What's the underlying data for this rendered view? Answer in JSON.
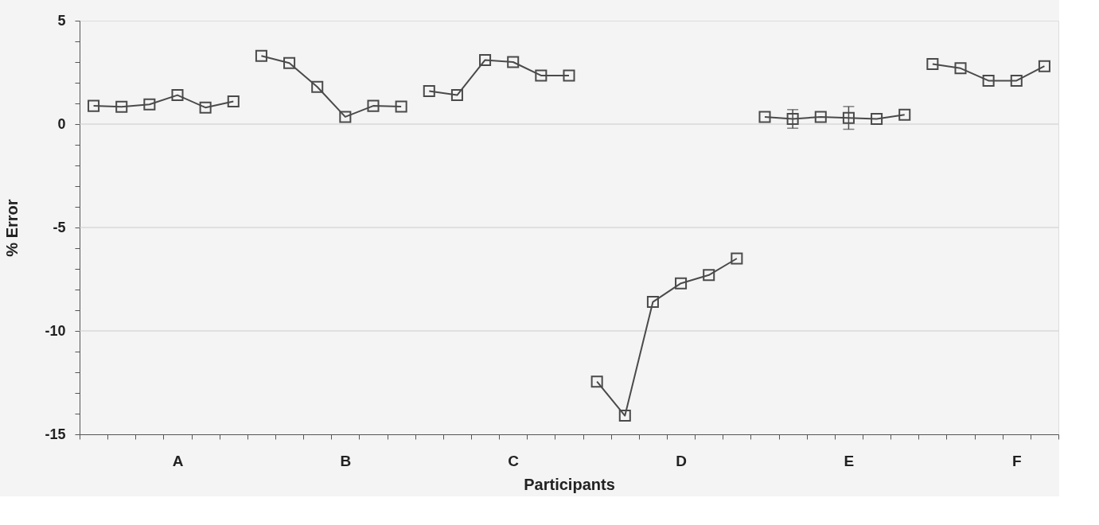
{
  "chart_data": {
    "type": "line",
    "xlabel": "Participants",
    "ylabel": "% Error",
    "categories": [
      null,
      null,
      null,
      "A",
      null,
      null,
      null,
      null,
      null,
      "B",
      null,
      null,
      null,
      null,
      null,
      "C",
      null,
      null,
      null,
      null,
      null,
      "D",
      null,
      null,
      null,
      null,
      null,
      "E",
      null,
      null,
      null,
      null,
      null,
      "F",
      null
    ],
    "series": [
      {
        "color": "#4a4a4a",
        "values": [
          0.88,
          0.84,
          0.95,
          1.4,
          0.8,
          1.1,
          null,
          null,
          null,
          null,
          null,
          null,
          null,
          null,
          null,
          null,
          null,
          null,
          null,
          null,
          null,
          null,
          null,
          null,
          null,
          null,
          null,
          null,
          null,
          null,
          null,
          null,
          null,
          null,
          null
        ]
      },
      {
        "color": "#4a4a4a",
        "values": [
          null,
          null,
          null,
          null,
          null,
          null,
          3.3,
          2.95,
          1.8,
          0.35,
          0.88,
          0.85,
          null,
          null,
          null,
          null,
          null,
          null,
          null,
          null,
          null,
          null,
          null,
          null,
          null,
          null,
          null,
          null,
          null,
          null,
          null,
          null,
          null,
          null,
          null
        ]
      },
      {
        "color": "#4a4a4a",
        "values": [
          null,
          null,
          null,
          null,
          null,
          null,
          null,
          null,
          null,
          null,
          null,
          null,
          1.6,
          1.4,
          3.1,
          3.0,
          2.35,
          2.35,
          null,
          null,
          null,
          null,
          null,
          null,
          null,
          null,
          null,
          null,
          null,
          null,
          null,
          null,
          null,
          null,
          null
        ]
      },
      {
        "color": "#4a4a4a",
        "values": [
          null,
          null,
          null,
          null,
          null,
          null,
          null,
          null,
          null,
          null,
          null,
          null,
          null,
          null,
          null,
          null,
          null,
          null,
          -12.45,
          -14.1,
          -8.6,
          -7.7,
          -7.3,
          -6.5,
          null,
          null,
          null,
          null,
          null,
          null,
          null,
          null,
          null,
          null,
          null
        ]
      },
      {
        "color": "#4a4a4a",
        "values": [
          null,
          null,
          null,
          null,
          null,
          null,
          null,
          null,
          null,
          null,
          null,
          null,
          null,
          null,
          null,
          null,
          null,
          null,
          null,
          null,
          null,
          null,
          null,
          null,
          0.35,
          0.25,
          0.35,
          0.3,
          0.25,
          0.45,
          null,
          null,
          null,
          null,
          null
        ],
        "errors": [
          null,
          null,
          null,
          null,
          null,
          null,
          null,
          null,
          null,
          null,
          null,
          null,
          null,
          null,
          null,
          null,
          null,
          null,
          null,
          null,
          null,
          null,
          null,
          null,
          null,
          0.45,
          null,
          0.55,
          null,
          null,
          null,
          null,
          null,
          null,
          null
        ]
      },
      {
        "color": "#4a4a4a",
        "values": [
          null,
          null,
          null,
          null,
          null,
          null,
          null,
          null,
          null,
          null,
          null,
          null,
          null,
          null,
          null,
          null,
          null,
          null,
          null,
          null,
          null,
          null,
          null,
          null,
          null,
          null,
          null,
          null,
          null,
          null,
          2.9,
          2.7,
          2.1,
          2.1,
          2.8
        ]
      }
    ],
    "ylim": [
      -15,
      5
    ],
    "yticks": [
      -15,
      {
        "value": -14,
        "label": null
      },
      {
        "value": -13,
        "label": null
      },
      {
        "value": -12,
        "label": null
      },
      {
        "value": -11,
        "label": null
      },
      -10,
      {
        "value": -9,
        "label": null
      },
      {
        "value": -8,
        "label": null
      },
      {
        "value": -7,
        "label": null
      },
      {
        "value": -6,
        "label": null
      },
      -5,
      {
        "value": -4,
        "label": null
      },
      {
        "value": -3,
        "label": null
      },
      {
        "value": -2,
        "label": null
      },
      {
        "value": -1,
        "label": null
      },
      0,
      {
        "value": 1,
        "label": null
      },
      {
        "value": 2,
        "label": null
      },
      {
        "value": 3,
        "label": null
      },
      {
        "value": 4,
        "label": null
      },
      5
    ],
    "ref_lines": [
      {
        "axis": "y",
        "value": 0,
        "color": "#cccccc"
      },
      {
        "axis": "y",
        "value": -5,
        "color": "#cccccc"
      },
      {
        "axis": "y",
        "value": -10,
        "color": "#cccccc"
      }
    ],
    "marker": "square",
    "line_style": "solid"
  }
}
